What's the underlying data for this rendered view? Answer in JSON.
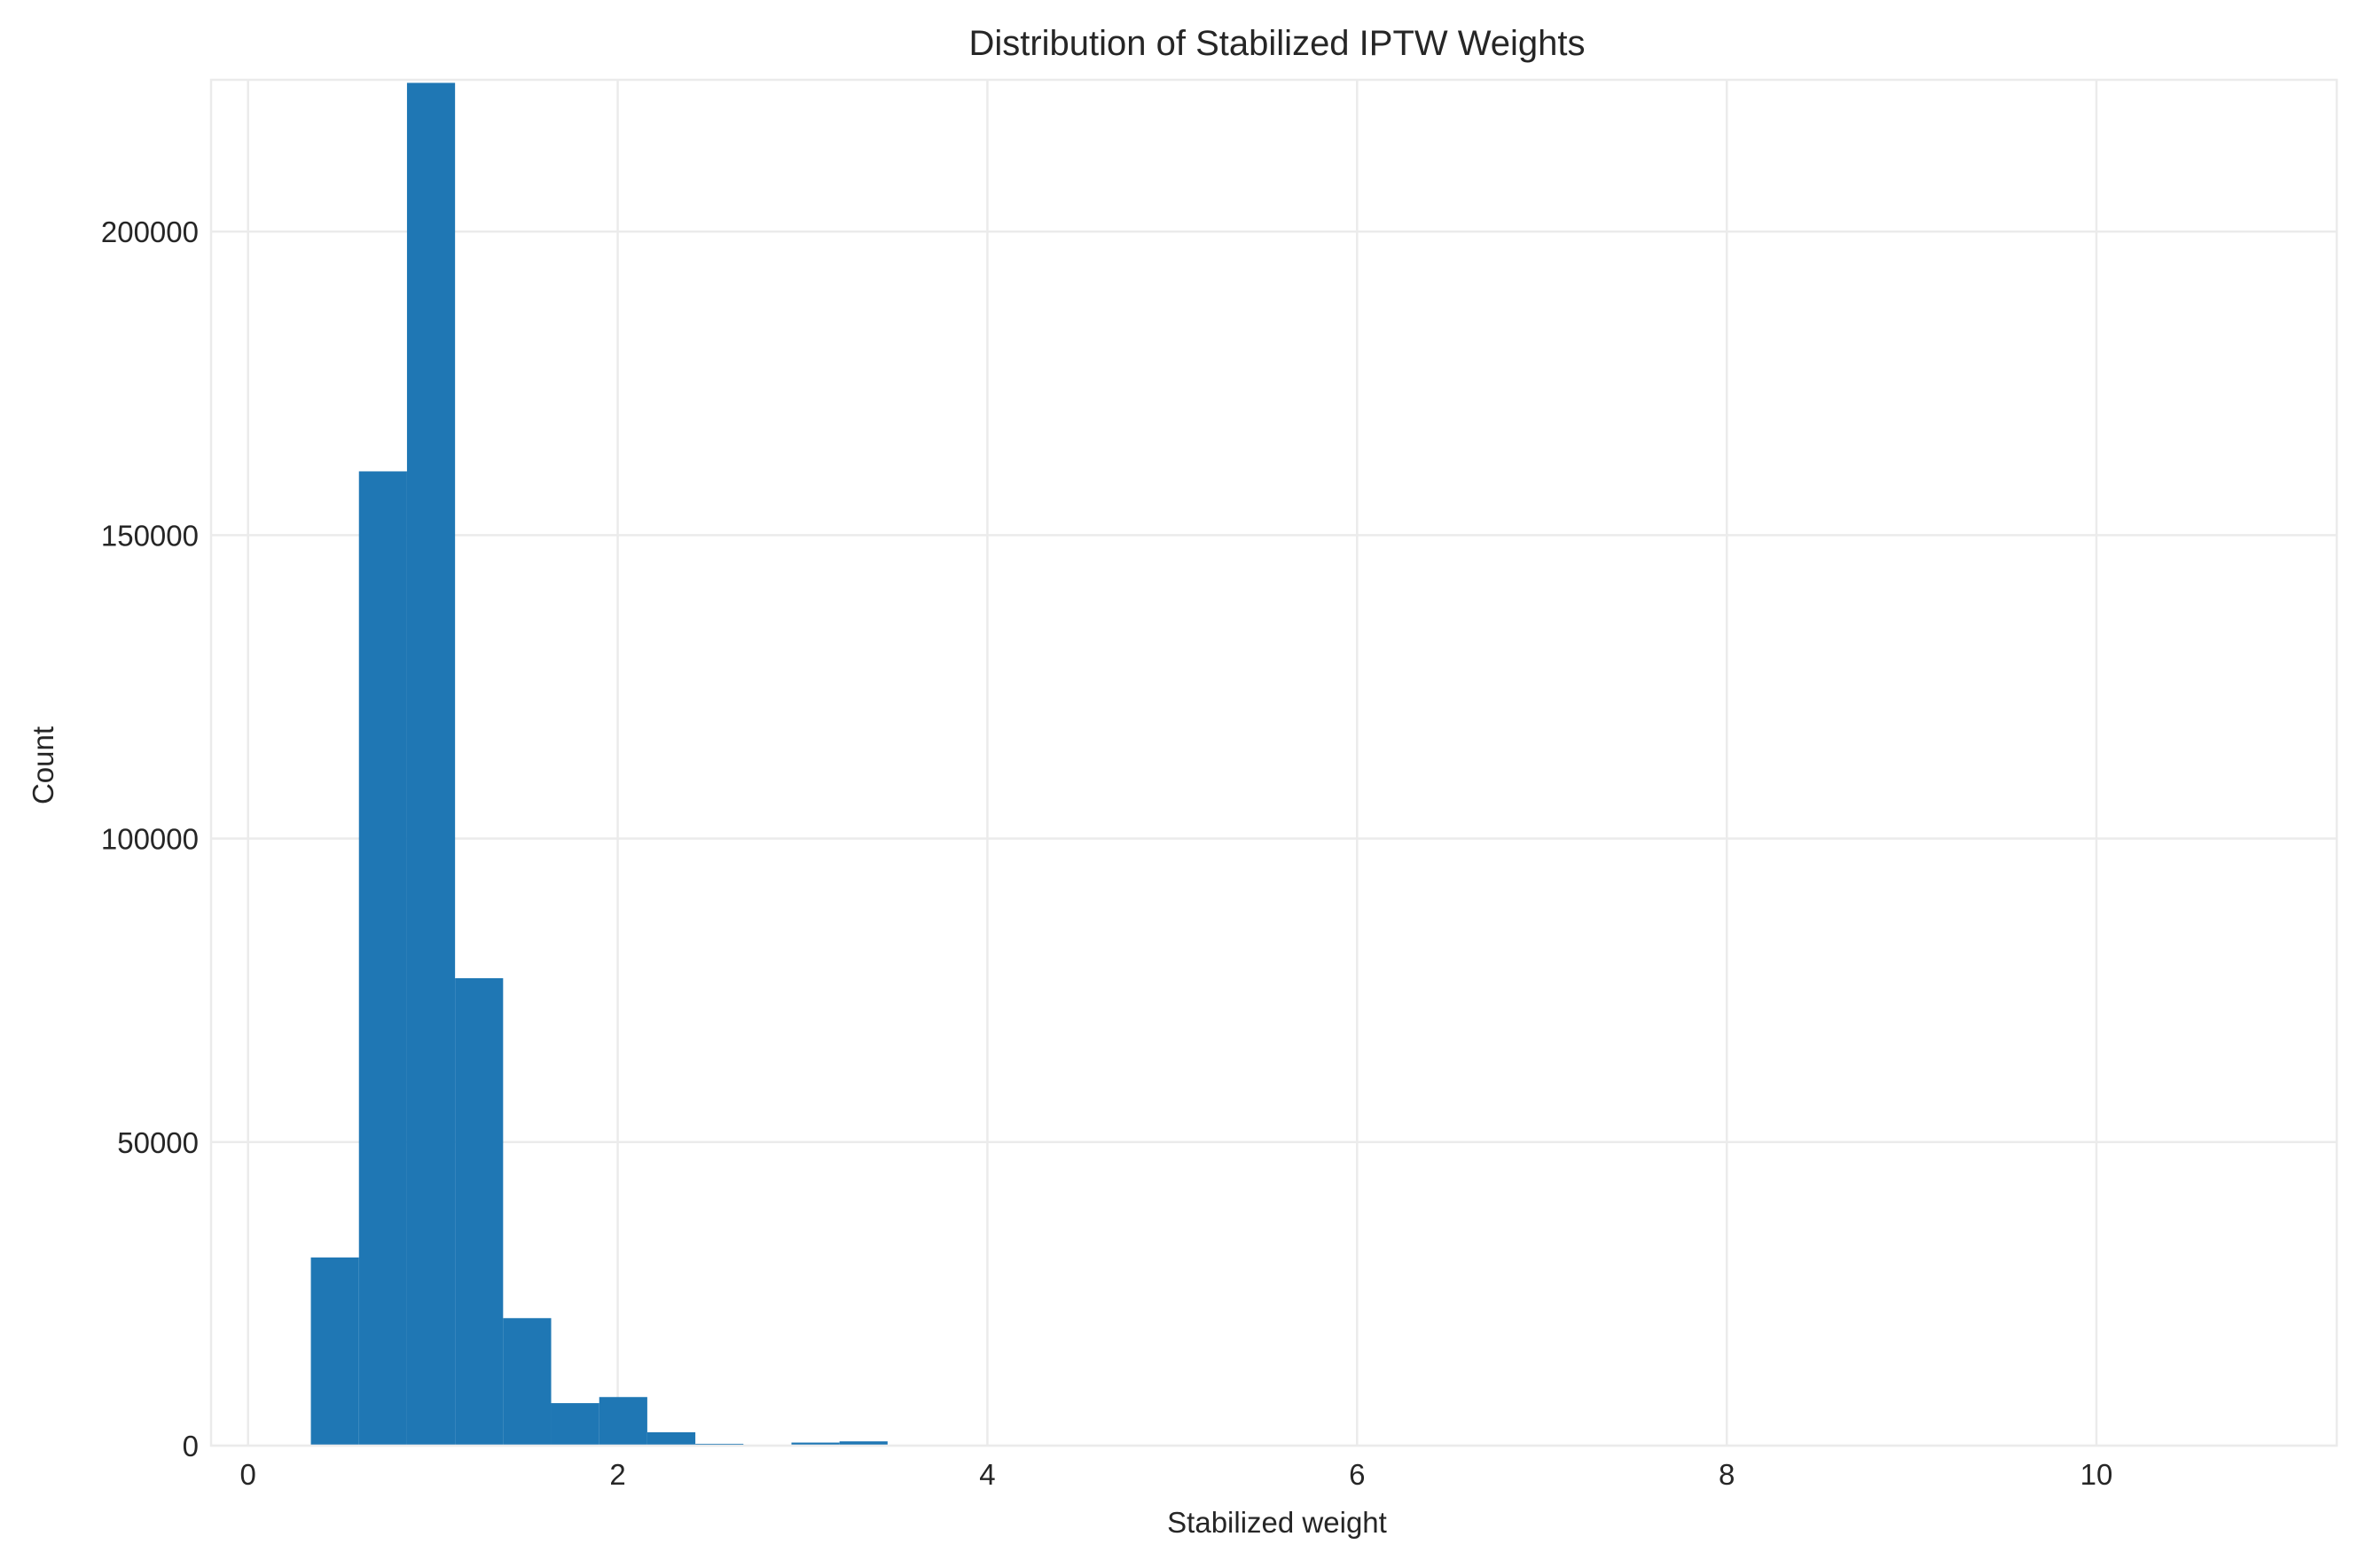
{
  "chart_data": {
    "type": "bar",
    "title": "Distribution of Stabilized IPTW Weights",
    "xlabel": "Stabilized weight",
    "ylabel": "Count",
    "xlim": [
      -0.2,
      11.3
    ],
    "ylim": [
      0,
      225000
    ],
    "x_ticks": [
      0,
      2,
      4,
      6,
      8,
      10
    ],
    "y_ticks": [
      0,
      50000,
      100000,
      150000,
      200000
    ],
    "grid": true,
    "bar_color": "#1f77b4",
    "bins": [
      {
        "x0": 0.34,
        "x1": 0.6,
        "count": 31000
      },
      {
        "x0": 0.6,
        "x1": 0.86,
        "count": 160500
      },
      {
        "x0": 0.86,
        "x1": 1.12,
        "count": 224500
      },
      {
        "x0": 1.12,
        "x1": 1.38,
        "count": 77000
      },
      {
        "x0": 1.38,
        "x1": 1.64,
        "count": 21000
      },
      {
        "x0": 1.64,
        "x1": 1.9,
        "count": 7000
      },
      {
        "x0": 1.9,
        "x1": 2.16,
        "count": 8000
      },
      {
        "x0": 2.16,
        "x1": 2.42,
        "count": 2200
      },
      {
        "x0": 2.42,
        "x1": 2.68,
        "count": 300
      },
      {
        "x0": 2.68,
        "x1": 2.94,
        "count": 100
      },
      {
        "x0": 2.94,
        "x1": 3.2,
        "count": 500
      },
      {
        "x0": 3.2,
        "x1": 3.46,
        "count": 700
      }
    ]
  }
}
